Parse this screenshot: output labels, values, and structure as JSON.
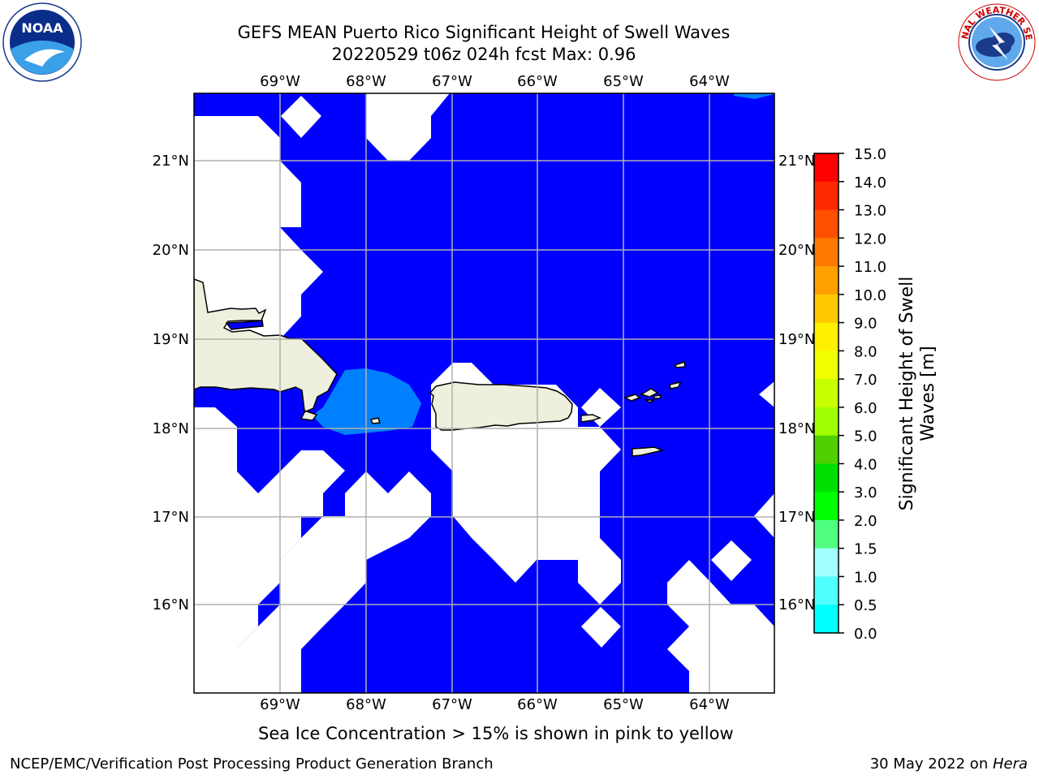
{
  "header": {
    "title_line1": "GEFS MEAN Puerto Rico Significant Height of Swell Waves",
    "title_line2": "20220529 t06z 024h fcst   Max: 0.96"
  },
  "logos": {
    "left": {
      "icon": "noaa-logo",
      "text": "NOAA"
    },
    "right": {
      "icon": "nws-logo",
      "text": "NATIONAL WEATHER SERVICE"
    }
  },
  "map": {
    "lon_labels": [
      "69°W",
      "68°W",
      "67°W",
      "66°W",
      "65°W",
      "64°W"
    ],
    "lat_labels": [
      "21°N",
      "20°N",
      "19°N",
      "18°N",
      "17°N",
      "16°N"
    ],
    "ocean_color": "#0000ff",
    "low_swell_color": "#0080ff",
    "land_color": "#efefdd",
    "nodata_color": "#ffffff"
  },
  "colorbar": {
    "label": "Significant Height of Swell Waves [m]",
    "label_line1": "Significant Height of Swell",
    "label_line2": "Waves [m]",
    "ticks": [
      "15.0",
      "14.0",
      "13.0",
      "12.0",
      "11.0",
      "10.0",
      "9.0",
      "8.0",
      "7.0",
      "6.0",
      "5.0",
      "4.0",
      "3.0",
      "2.0",
      "1.5",
      "1.0",
      "0.5",
      "0.0"
    ],
    "colors": [
      "#ff0000",
      "#ff2800",
      "#ff5000",
      "#ff7800",
      "#ffa000",
      "#ffc800",
      "#fff000",
      "#f0ff00",
      "#c8ff00",
      "#a0ff00",
      "#50d000",
      "#00e000",
      "#00ff00",
      "#50ff80",
      "#a0ffff",
      "#50ffff",
      "#00ffff",
      "#0080ff",
      "#0000ff"
    ]
  },
  "notes": {
    "sea_ice": "Sea Ice Concentration > 15% is shown in pink to yellow"
  },
  "footer": {
    "left": "NCEP/EMC/Verification Post Processing Product Generation Branch",
    "right_prefix": "30 May 2022 on ",
    "right_machine": "Hera"
  }
}
